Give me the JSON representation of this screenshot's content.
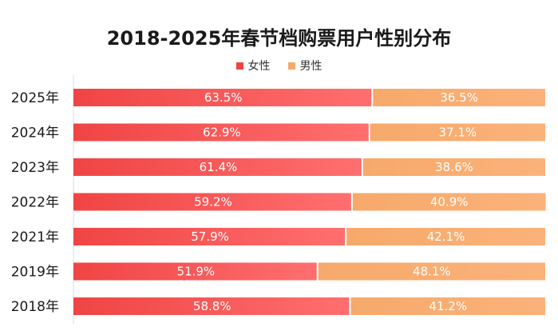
{
  "colors": {
    "female_start": "#f04444",
    "female_end": "#ff6f6f",
    "male_start": "#f6a96a",
    "male_end": "#fbb27a",
    "axis": "#dddddd"
  },
  "chart_data": {
    "type": "bar",
    "orientation": "horizontal",
    "stacked": true,
    "percent": true,
    "title": "2018-2025年春节档购票用户性别分布",
    "legend_position": "top-center",
    "categories": [
      "2025年",
      "2024年",
      "2023年",
      "2022年",
      "2021年",
      "2019年",
      "2018年"
    ],
    "series": [
      {
        "name": "女性",
        "values": [
          63.5,
          62.9,
          61.4,
          59.2,
          57.9,
          51.9,
          58.8
        ],
        "labels": [
          "63.5%",
          "62.9%",
          "61.4%",
          "59.2%",
          "57.9%",
          "51.9%",
          "58.8%"
        ]
      },
      {
        "name": "男性",
        "values": [
          36.5,
          37.1,
          38.6,
          40.9,
          42.1,
          48.1,
          41.2
        ],
        "labels": [
          "36.5%",
          "37.1%",
          "38.6%",
          "40.9%",
          "42.1%",
          "48.1%",
          "41.2%"
        ]
      }
    ],
    "xlim": [
      0,
      100
    ],
    "grid": false
  }
}
